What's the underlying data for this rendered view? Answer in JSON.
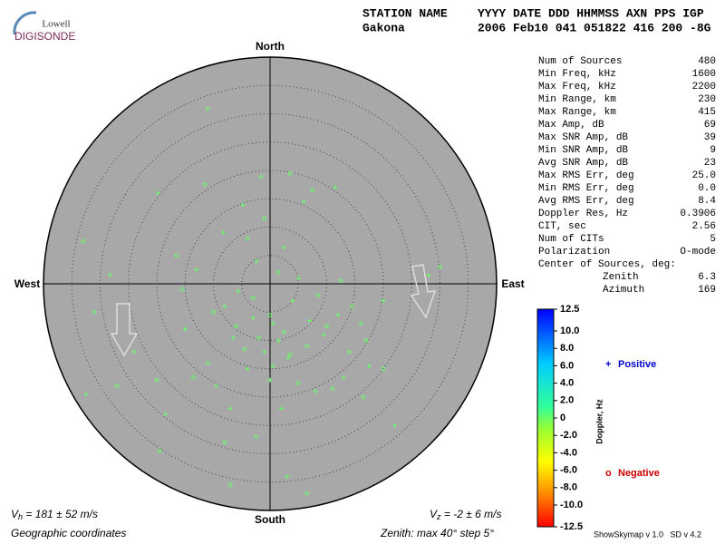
{
  "header": {
    "logo_top": "Lowell",
    "logo_bottom": "DIGISONDE",
    "row1": [
      "STATION NAME",
      "YYYY DATE  DDD HHMMSS AXN PPS IGP"
    ],
    "row2": [
      "Gakona",
      "2006 Feb10 041 051822 416 200 -8G"
    ]
  },
  "skymap": {
    "type": "scatter",
    "rlim": [
      0,
      40
    ],
    "rticks": [
      5,
      10,
      15,
      20,
      25,
      30,
      35,
      40
    ],
    "directions": {
      "north": "North",
      "south": "South",
      "west": "West",
      "east": "East"
    },
    "series": [
      {
        "name": "Positive",
        "marker": "+",
        "color": "#66ff66",
        "x": [
          -11.0,
          -1.6,
          -19.8,
          -4.8,
          -8.3,
          2.4,
          -2.4,
          -28.3,
          -5.6,
          -8.0,
          -3.0,
          0.5,
          1.5,
          -1.0,
          3.2,
          -6.5,
          7.0,
          12.0,
          9.5,
          16.0,
          20.0,
          28.0,
          30.0,
          -32.5,
          -18.5,
          -9.5,
          2.0,
          13.0,
          22.0,
          -2.5,
          3.0,
          11.5,
          6.0,
          -13.0,
          -15.0,
          4.0,
          -4.0,
          0.0,
          8.0,
          -7.0,
          14.0,
          17.5,
          -24.0,
          -11.0,
          5.0
        ],
        "y": [
          30.9,
          18.9,
          16.0,
          13.9,
          9.1,
          6.4,
          4.0,
          1.6,
          -1.3,
          -4.0,
          -6.0,
          -7.0,
          -10.0,
          -12.0,
          -13.0,
          -9.5,
          -6.5,
          -5.5,
          -9.0,
          -7.0,
          -3.0,
          1.5,
          3.0,
          -19.5,
          -23.0,
          -18.0,
          -22.0,
          -16.5,
          -25.0,
          -27.0,
          -34.0,
          17.0,
          14.5,
          2.5,
          -8.0,
          -3.0,
          -15.0,
          -17.0,
          -19.0,
          -22.0,
          -12.0,
          -14.5,
          -12.0,
          -14.0,
          1.0
        ]
      },
      {
        "name": "Negative",
        "marker": "o",
        "color": "#66ff66",
        "x": [
          -33.0,
          -31.0,
          -27.0,
          -11.5,
          3.5,
          7.5,
          -1.0,
          -4.0,
          1.5,
          -10.0,
          -6.0,
          -2.0,
          2.5,
          6.5,
          10.0,
          14.5,
          17.0,
          -13.5,
          -20.0,
          -8.0,
          -19.5,
          3.5,
          0.5,
          -4.5,
          5.0,
          11.0,
          16.5,
          -15.5,
          -16.5,
          20.0,
          6.5,
          -7.0,
          0.0,
          -3.0,
          8.5,
          12.5
        ],
        "y": [
          7.5,
          -5.0,
          -18.0,
          17.5,
          19.5,
          16.5,
          11.5,
          8.0,
          2.0,
          -5.0,
          -7.5,
          -9.5,
          -8.5,
          -11.0,
          -7.5,
          -4.0,
          -10.0,
          -16.5,
          -17.0,
          -28.0,
          -29.5,
          -12.5,
          -14.5,
          -11.5,
          -17.5,
          -18.5,
          -20.0,
          -1.0,
          5.0,
          -15.0,
          -37.0,
          -35.5,
          -5.5,
          -2.5,
          -2.0,
          0.5
        ]
      }
    ]
  },
  "legend": {
    "positive": {
      "symbol": "+",
      "text": "Positive",
      "color": "#0000cc"
    },
    "negative": {
      "symbol": "o",
      "text": "Negative",
      "color": "#cc0000"
    }
  },
  "colorbar": {
    "label": "Doppler, Hz",
    "lim": [
      -12.5,
      12.5
    ],
    "ticks": [
      12.5,
      {
        "value": 10,
        "label": "10.0"
      },
      {
        "value": 8,
        "label": "8.0"
      },
      {
        "value": 6,
        "label": "6.0"
      },
      {
        "value": 4,
        "label": "4.0"
      },
      {
        "value": 2,
        "label": "2.0"
      },
      0,
      {
        "value": -2,
        "label": "-2.0"
      },
      {
        "value": -4,
        "label": "-4.0"
      },
      {
        "value": -6,
        "label": "-6.0"
      },
      {
        "value": -8,
        "label": "-8.0"
      },
      {
        "value": -10,
        "label": "-10.0"
      },
      -12.5
    ]
  },
  "stats": [
    [
      "Num of Sources",
      "480"
    ],
    [
      "Min Freq, kHz",
      "1600"
    ],
    [
      "Max Freq, kHz",
      "2200"
    ],
    [
      "Min Range, km",
      "230"
    ],
    [
      "Max Range, km",
      "415"
    ],
    [
      "Max Amp, dB",
      "69"
    ],
    [
      "Max SNR Amp, dB",
      "39"
    ],
    [
      "Min SNR Amp, dB",
      "9"
    ],
    [
      "Avg SNR Amp, dB",
      "23"
    ],
    [
      "Max RMS Err, deg",
      "25.0"
    ],
    [
      "Min RMS Err, deg",
      "0.0"
    ],
    [
      "Avg RMS Err, deg",
      "8.4"
    ],
    [
      "Doppler Res, Hz",
      "0.3906"
    ],
    [
      "CIT, sec",
      "2.56"
    ],
    [
      "Num of CITs",
      "5"
    ],
    [
      "Polarization",
      "O-mode"
    ],
    [
      "Center of Sources, deg:",
      null
    ],
    [
      "Zenith",
      "6.3"
    ],
    [
      "Azimuth",
      "169"
    ]
  ],
  "footer": {
    "vh": {
      "symbol": "V",
      "sub": "h",
      "text": " = 181 ± 52 m/s"
    },
    "vz": {
      "symbol": "V",
      "sub": "z",
      "text": " = -2 ± 6 m/s"
    },
    "coords": "Geographic coordinates",
    "zenith": "Zenith: max 40°  step 5°",
    "version": "ShowSkymap v 1.0   SD v 4.2"
  }
}
